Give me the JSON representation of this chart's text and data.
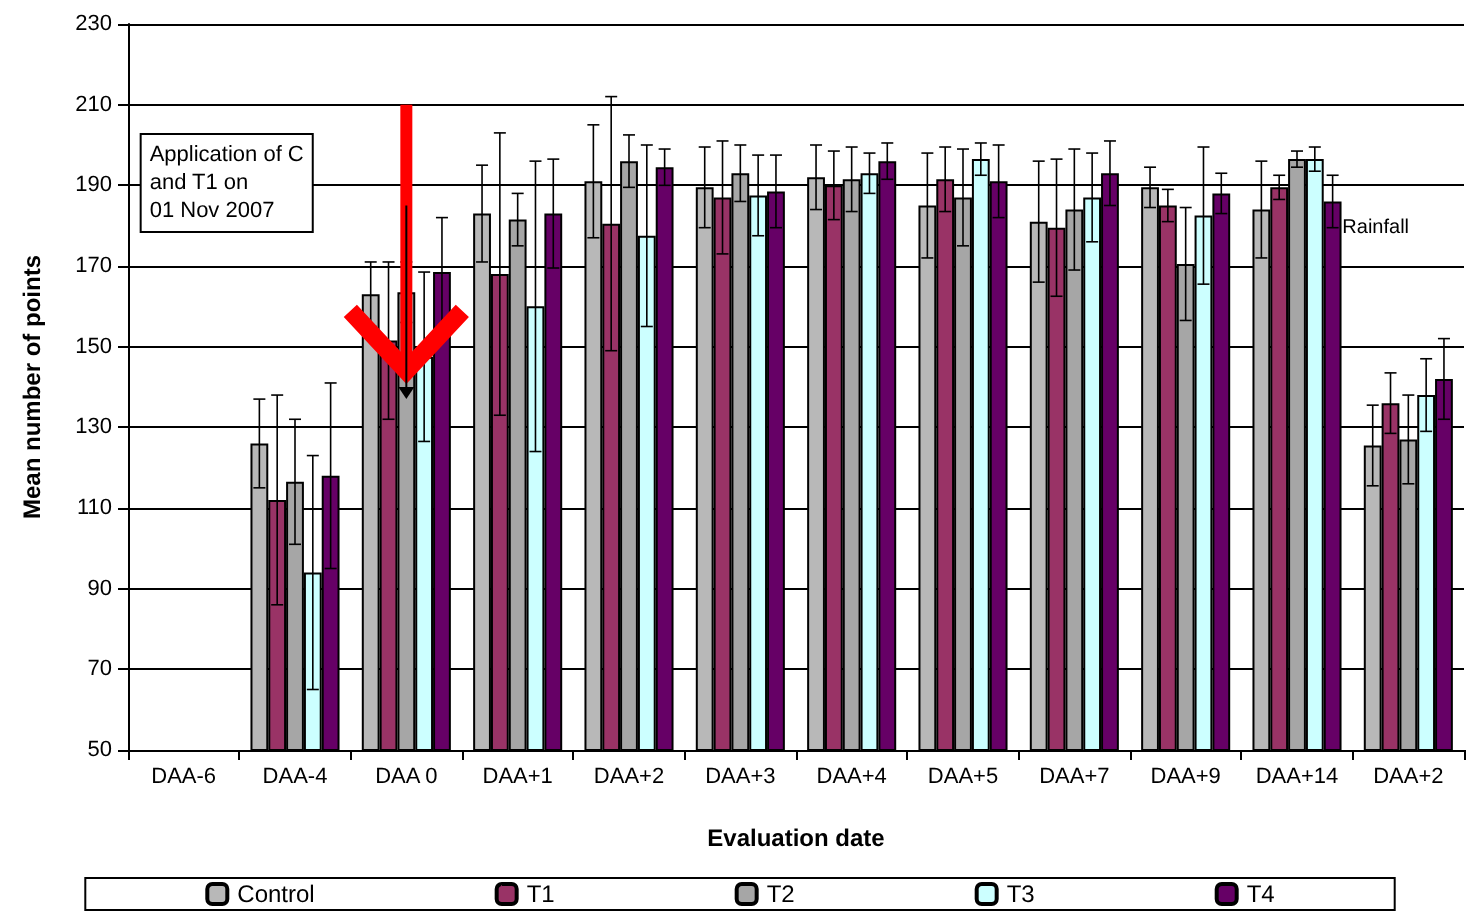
{
  "chart_data": {
    "type": "bar",
    "xlabel": "Evaluation date",
    "ylabel": "Mean number of points",
    "categories": [
      "DAA-6",
      "DAA-4",
      "DAA 0",
      "DAA+1",
      "DAA+2",
      "DAA+3",
      "DAA+4",
      "DAA+5",
      "DAA+7",
      "DAA+9",
      "DAA+14",
      "DAA+2"
    ],
    "series": [
      {
        "name": "Control",
        "color": "#b8b8b8",
        "values": [
          null,
          126,
          163,
          183,
          191,
          189.5,
          192,
          185,
          181,
          189.5,
          184,
          125.5
        ],
        "errors": [
          null,
          11,
          8,
          12,
          14,
          10,
          8,
          13,
          15,
          5,
          12,
          10
        ]
      },
      {
        "name": "T1",
        "color": "#993366",
        "values": [
          null,
          112,
          151.5,
          168,
          180.5,
          187,
          190,
          191.5,
          179.5,
          185,
          189.5,
          136
        ],
        "errors": [
          null,
          26,
          19.5,
          35,
          31.5,
          14,
          8.5,
          8,
          17,
          4,
          3,
          7.5
        ]
      },
      {
        "name": "T2",
        "color": "#a6a6a6",
        "values": [
          null,
          116.5,
          163.5,
          181.5,
          196,
          193,
          191.5,
          187,
          184,
          170.5,
          196.5,
          127
        ],
        "errors": [
          null,
          15.5,
          7.5,
          6.5,
          6.5,
          7,
          8,
          12,
          15,
          14,
          2,
          11
        ]
      },
      {
        "name": "T3",
        "color": "#ccffff",
        "values": [
          null,
          94,
          147.5,
          160,
          177.5,
          187.5,
          193,
          196.5,
          187,
          182.5,
          196.5,
          138
        ],
        "errors": [
          null,
          29,
          21,
          36,
          22.5,
          10,
          5,
          4,
          11,
          17,
          3,
          9
        ]
      },
      {
        "name": "T4",
        "color": "#660066",
        "values": [
          null,
          118,
          168.5,
          183,
          194.5,
          188.5,
          196,
          191,
          193,
          188,
          186,
          142
        ],
        "errors": [
          null,
          23,
          13.5,
          13.5,
          4.5,
          9,
          4.5,
          9,
          8,
          5,
          6.5,
          10
        ]
      }
    ],
    "ylim": [
      50,
      230
    ],
    "yticks": [
      50,
      70,
      90,
      110,
      130,
      150,
      170,
      190,
      210,
      230
    ],
    "grid": "y",
    "legend": "bottom",
    "annotations": [
      "Application of C and T1 on 01 Nov 2007",
      "Rainfall"
    ]
  }
}
